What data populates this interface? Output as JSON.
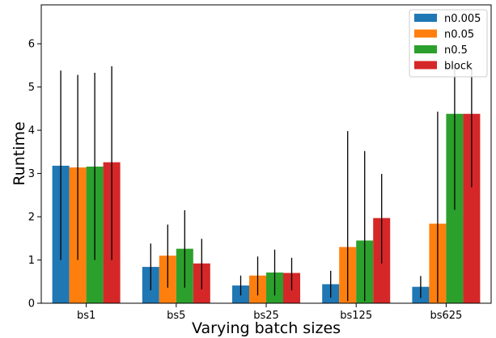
{
  "chart_data": {
    "type": "bar",
    "xlabel": "Varying batch sizes",
    "ylabel": "Runtime",
    "categories": [
      "bs1",
      "bs5",
      "bs25",
      "bs125",
      "bs625"
    ],
    "ylim": [
      0,
      6.9
    ],
    "yticks": [
      "0",
      "1",
      "2",
      "3",
      "4",
      "5",
      "6"
    ],
    "legend_position": "top-right",
    "grid": false,
    "series": [
      {
        "name": "n0.005",
        "color": "#1f77b4",
        "values": [
          3.18,
          0.84,
          0.41,
          0.44,
          0.38
        ],
        "err_low": [
          1.0,
          0.3,
          0.18,
          0.13,
          0.12
        ],
        "err_high": [
          5.38,
          1.38,
          0.64,
          0.75,
          0.63
        ]
      },
      {
        "name": "n0.05",
        "color": "#ff7f0e",
        "values": [
          3.14,
          1.1,
          0.64,
          1.3,
          1.84
        ],
        "err_low": [
          1.0,
          0.36,
          0.18,
          0.05,
          0.02
        ],
        "err_high": [
          5.28,
          1.82,
          1.08,
          3.98,
          4.43
        ]
      },
      {
        "name": "n0.5",
        "color": "#2ca02c",
        "values": [
          3.16,
          1.26,
          0.71,
          1.45,
          4.38
        ],
        "err_low": [
          1.0,
          0.36,
          0.18,
          0.05,
          2.16
        ],
        "err_high": [
          5.33,
          2.15,
          1.24,
          3.52,
          5.45
        ]
      },
      {
        "name": "block",
        "color": "#d62728",
        "values": [
          3.26,
          0.92,
          0.7,
          1.97,
          4.38
        ],
        "err_low": [
          1.0,
          0.32,
          0.3,
          0.92,
          2.68
        ],
        "err_high": [
          5.48,
          1.49,
          1.05,
          2.99,
          5.45
        ]
      }
    ]
  }
}
